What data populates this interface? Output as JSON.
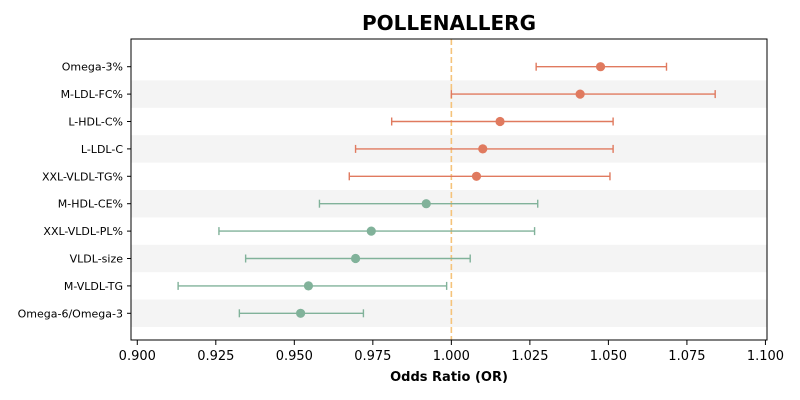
{
  "chart_data": {
    "type": "forest",
    "title": "POLLENALLERG",
    "xlabel": "Odds Ratio (OR)",
    "ylabel": "",
    "xlim": [
      0.898,
      1.1005
    ],
    "xticks": [
      "0.900",
      "0.925",
      "0.950",
      "0.975",
      "1.000",
      "1.025",
      "1.050",
      "1.075",
      "1.100"
    ],
    "reference_line": 1.0,
    "reference_color": "#f5c37a",
    "colors": {
      "risk": "#e07a5f",
      "protective": "#81b29a",
      "stripe": "#f4f4f4"
    },
    "grid": false,
    "items": [
      {
        "label": "Omega-3%",
        "or": 1.0475,
        "lower": 1.027,
        "upper": 1.0685,
        "group": "risk"
      },
      {
        "label": "M-LDL-FC%",
        "or": 1.041,
        "lower": 1.0,
        "upper": 1.084,
        "group": "risk"
      },
      {
        "label": "L-HDL-C%",
        "or": 1.0155,
        "lower": 0.981,
        "upper": 1.0515,
        "group": "risk"
      },
      {
        "label": "L-LDL-C",
        "or": 1.01,
        "lower": 0.9695,
        "upper": 1.0515,
        "group": "risk"
      },
      {
        "label": "XXL-VLDL-TG%",
        "or": 1.008,
        "lower": 0.9675,
        "upper": 1.0505,
        "group": "risk"
      },
      {
        "label": "M-HDL-CE%",
        "or": 0.992,
        "lower": 0.958,
        "upper": 1.0275,
        "group": "protective"
      },
      {
        "label": "XXL-VLDL-PL%",
        "or": 0.9745,
        "lower": 0.926,
        "upper": 1.0265,
        "group": "protective"
      },
      {
        "label": "VLDL-size",
        "or": 0.9695,
        "lower": 0.9345,
        "upper": 1.006,
        "group": "protective"
      },
      {
        "label": "M-VLDL-TG",
        "or": 0.9545,
        "lower": 0.913,
        "upper": 0.9985,
        "group": "protective"
      },
      {
        "label": "Omega-6/Omega-3",
        "or": 0.952,
        "lower": 0.9325,
        "upper": 0.972,
        "group": "protective"
      }
    ]
  }
}
